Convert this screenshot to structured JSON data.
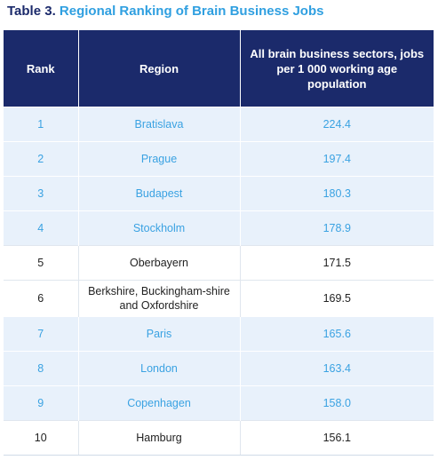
{
  "caption": {
    "label": "Table 3.",
    "title": "Regional Ranking of Brain Business Jobs"
  },
  "table": {
    "headers": [
      "Rank",
      "Region",
      "All brain business sectors, jobs per 1 000 working age population"
    ],
    "rows": [
      {
        "rank": "1",
        "region": "Bratislava",
        "value": "224.4",
        "highlight": true
      },
      {
        "rank": "2",
        "region": "Prague",
        "value": "197.4",
        "highlight": true
      },
      {
        "rank": "3",
        "region": "Budapest",
        "value": "180.3",
        "highlight": true
      },
      {
        "rank": "4",
        "region": "Stockholm",
        "value": "178.9",
        "highlight": true
      },
      {
        "rank": "5",
        "region": "Oberbayern",
        "value": "171.5",
        "highlight": false
      },
      {
        "rank": "6",
        "region": "Berkshire, Buckingham-shire and Oxfordshire",
        "value": "169.5",
        "highlight": false
      },
      {
        "rank": "7",
        "region": "Paris",
        "value": "165.6",
        "highlight": true
      },
      {
        "rank": "8",
        "region": "London",
        "value": "163.4",
        "highlight": true
      },
      {
        "rank": "9",
        "region": "Copenhagen",
        "value": "158.0",
        "highlight": true
      },
      {
        "rank": "10",
        "region": "Hamburg",
        "value": "156.1",
        "highlight": false
      }
    ]
  },
  "colors": {
    "header_bg": "#1b2a6b",
    "accent": "#2f9fe0",
    "highlight_row_bg": "#e8f1fb"
  }
}
